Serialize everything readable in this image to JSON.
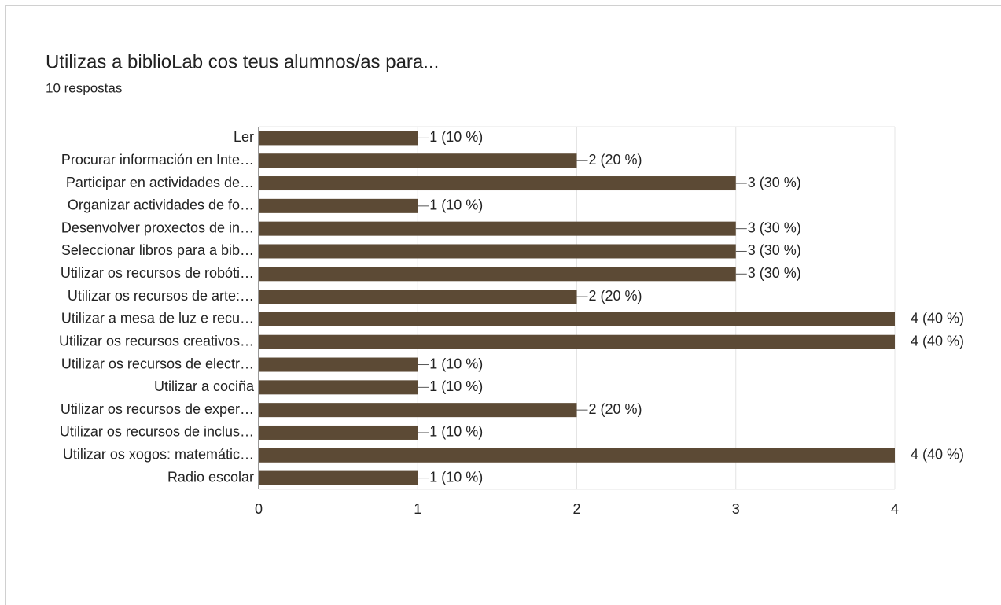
{
  "chart_data": {
    "type": "bar",
    "orientation": "horizontal",
    "title": "Utilizas a biblioLab cos teus alumnos/as para...",
    "subtitle": "10 respostas",
    "categories": [
      "Ler",
      "Procurar información en Inte…",
      "Participar en actividades de…",
      "Organizar actividades de fo…",
      "Desenvolver proxectos de in…",
      "Seleccionar libros para a bib…",
      "Utilizar os recursos de robóti…",
      "Utilizar os recursos de arte:…",
      "Utilizar a mesa de luz e recu…",
      "Utilizar os recursos creativos…",
      "Utilizar os recursos de electr…",
      "Utilizar a cociña",
      "Utilizar os recursos de exper…",
      "Utilizar os recursos de inclus…",
      "Utilizar os xogos: matemátic…",
      "Radio escolar"
    ],
    "values": [
      1,
      2,
      3,
      1,
      3,
      3,
      3,
      2,
      4,
      4,
      1,
      1,
      2,
      1,
      4,
      1
    ],
    "value_labels": [
      "1 (10 %)",
      "2 (20 %)",
      "3 (30 %)",
      "1 (10 %)",
      "3 (30 %)",
      "3 (30 %)",
      "3 (30 %)",
      "2 (20 %)",
      "4 (40 %)",
      "4 (40 %)",
      "1 (10 %)",
      "1 (10 %)",
      "2 (20 %)",
      "1 (10 %)",
      "4 (40 %)",
      "1 (10 %)"
    ],
    "color": "#5c4a35",
    "xlim": [
      0,
      4
    ],
    "xticks": [
      0,
      1,
      2,
      3,
      4
    ],
    "grid": true
  }
}
